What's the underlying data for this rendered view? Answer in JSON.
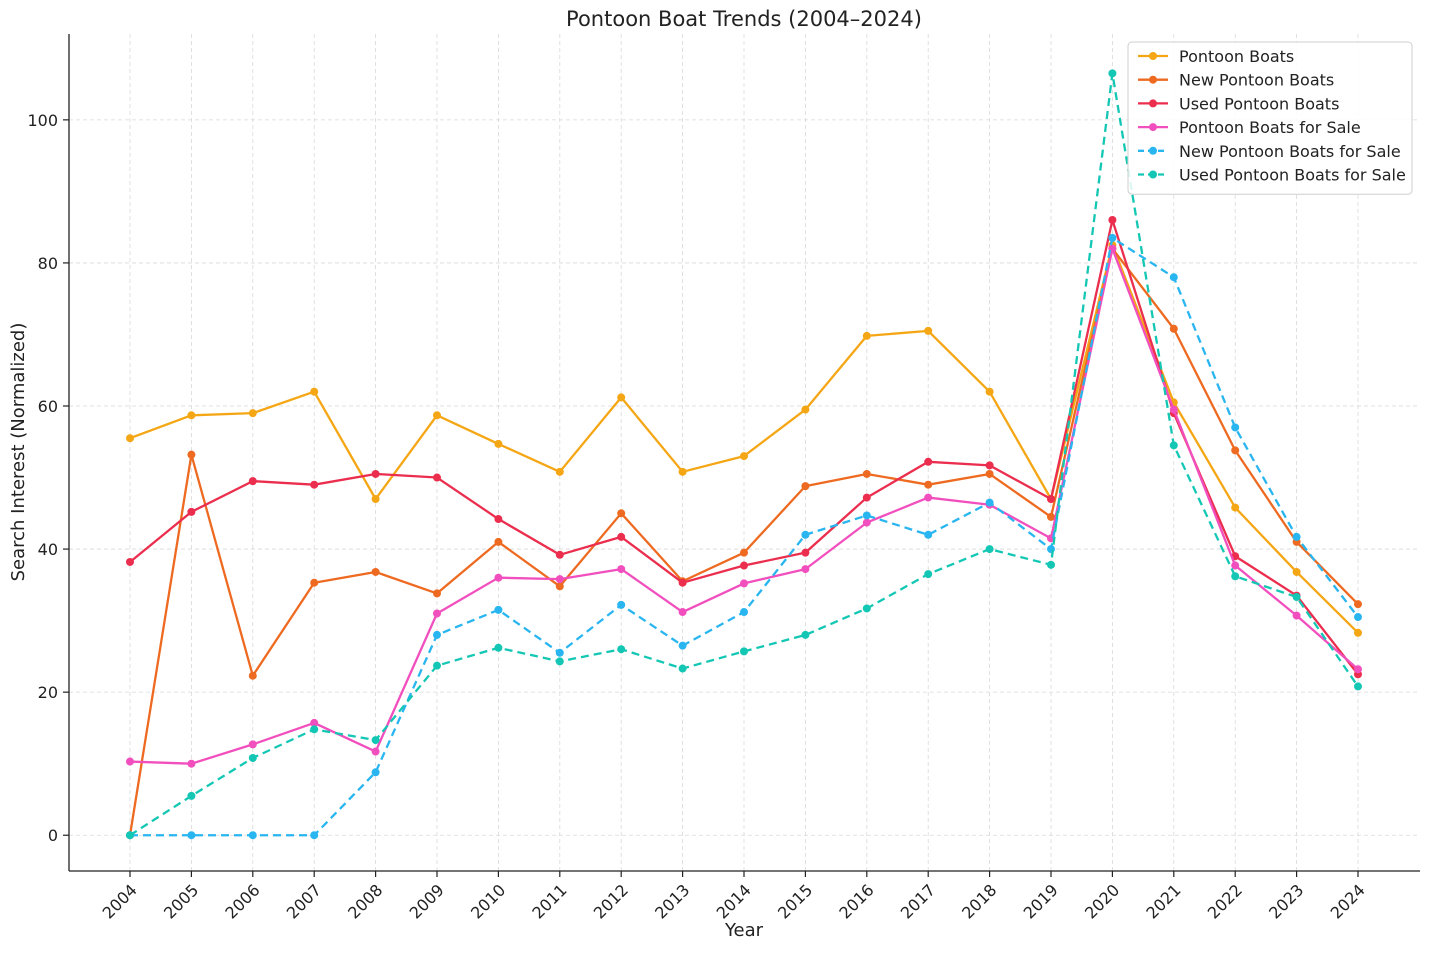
{
  "chart_data": {
    "type": "line",
    "title": "Pontoon Boat Trends (2004–2024)",
    "xlabel": "Year",
    "ylabel": "Search Interest (Normalized)",
    "ylim": [
      -5,
      112
    ],
    "yticks": [
      0,
      20,
      40,
      60,
      80,
      100
    ],
    "categories": [
      "2004",
      "2005",
      "2006",
      "2007",
      "2008",
      "2009",
      "2010",
      "2011",
      "2012",
      "2013",
      "2014",
      "2015",
      "2016",
      "2017",
      "2018",
      "2019",
      "2020",
      "2021",
      "2022",
      "2023",
      "2024"
    ],
    "grid": true,
    "legend_position": "top-right",
    "series": [
      {
        "name": "Pontoon Boats",
        "color": "#F5A614",
        "dash": "solid",
        "values": [
          55.5,
          58.7,
          59.0,
          62.0,
          47.0,
          58.7,
          54.7,
          50.8,
          61.2,
          50.8,
          53.0,
          59.5,
          69.8,
          70.5,
          62.0,
          47.0,
          82.5,
          60.5,
          45.8,
          36.8,
          28.3
        ]
      },
      {
        "name": "New Pontoon Boats",
        "color": "#EE6A21",
        "dash": "solid",
        "values": [
          0.0,
          53.2,
          22.3,
          35.3,
          36.8,
          33.8,
          41.0,
          34.8,
          45.0,
          35.5,
          39.5,
          48.8,
          50.5,
          49.0,
          50.5,
          44.5,
          82.0,
          70.8,
          53.8,
          41.0,
          32.3
        ]
      },
      {
        "name": "Used Pontoon Boats",
        "color": "#EB2D4E",
        "dash": "solid",
        "values": [
          38.2,
          45.2,
          49.5,
          49.0,
          50.5,
          50.0,
          44.2,
          39.2,
          41.7,
          35.3,
          37.7,
          39.5,
          47.2,
          52.2,
          51.7,
          47.0,
          86.0,
          59.0,
          39.0,
          33.5,
          22.5
        ]
      },
      {
        "name": "Pontoon Boats for Sale",
        "color": "#F24FBE",
        "dash": "solid",
        "values": [
          10.3,
          10.0,
          12.7,
          15.7,
          11.7,
          31.0,
          36.0,
          35.8,
          37.2,
          31.2,
          35.2,
          37.2,
          43.7,
          47.2,
          46.2,
          41.5,
          82.0,
          59.5,
          37.7,
          30.7,
          23.2
        ]
      },
      {
        "name": "New Pontoon Boats for Sale",
        "color": "#29B5F0",
        "dash": "dashed",
        "values": [
          0.0,
          0.0,
          0.0,
          0.0,
          8.8,
          28.0,
          31.5,
          25.5,
          32.2,
          26.5,
          31.2,
          42.0,
          44.7,
          42.0,
          46.5,
          40.0,
          83.5,
          78.0,
          57.0,
          41.7,
          30.5
        ]
      },
      {
        "name": "Used Pontoon Boats for Sale",
        "color": "#14C7B4",
        "dash": "dashed",
        "values": [
          0.0,
          5.5,
          10.8,
          14.8,
          13.3,
          23.7,
          26.2,
          24.3,
          26.0,
          23.3,
          25.7,
          28.0,
          31.7,
          36.5,
          40.0,
          37.8,
          106.5,
          54.5,
          36.2,
          33.3,
          20.8
        ]
      }
    ]
  }
}
